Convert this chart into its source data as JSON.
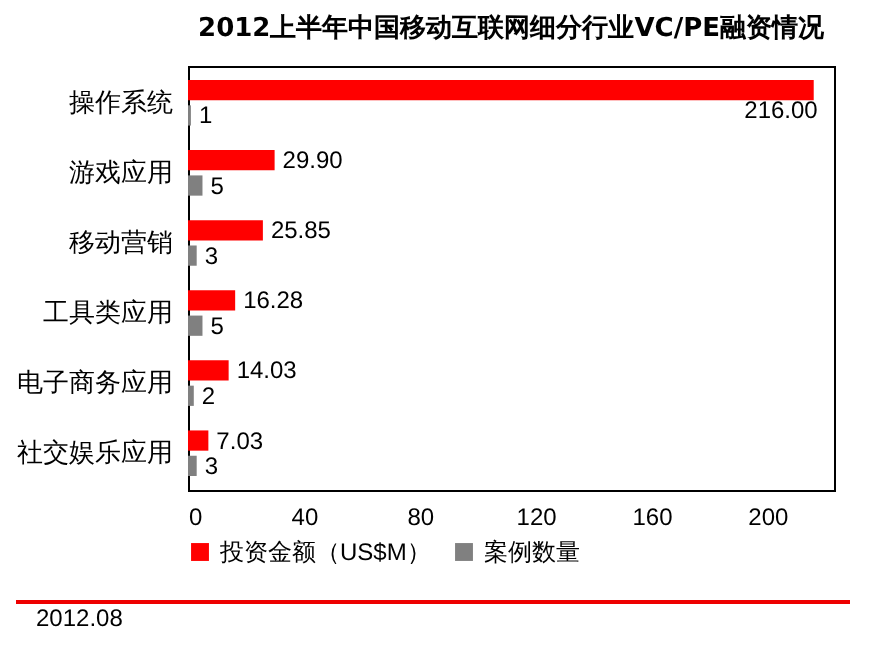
{
  "chart_data": {
    "type": "bar",
    "orientation": "horizontal",
    "title": "2012上半年中国移动互联网细分行业VC/PE融资情况",
    "categories": [
      "操作系统",
      "游戏应用",
      "移动营销",
      "工具类应用",
      "电子商务应用",
      "社交娱乐应用"
    ],
    "series": [
      {
        "name": "投资金额（US$M）",
        "color": "#ff0000",
        "values": [
          216,
          29.9,
          25.85,
          16.28,
          14.03,
          7.03
        ],
        "value_labels": [
          "216.00",
          "29.90",
          "25.85",
          "16.28",
          "14.03",
          "7.03"
        ]
      },
      {
        "name": "案例数量",
        "color": "#808080",
        "values": [
          1,
          5,
          3,
          5,
          2,
          3
        ],
        "value_labels": [
          "1",
          "5",
          "3",
          "5",
          "2",
          "3"
        ]
      }
    ],
    "xlim": [
      0,
      223
    ],
    "xticks": [
      0,
      40,
      80,
      120,
      160,
      200
    ],
    "legend": "bottom",
    "annotations": [
      "2012.08"
    ]
  }
}
